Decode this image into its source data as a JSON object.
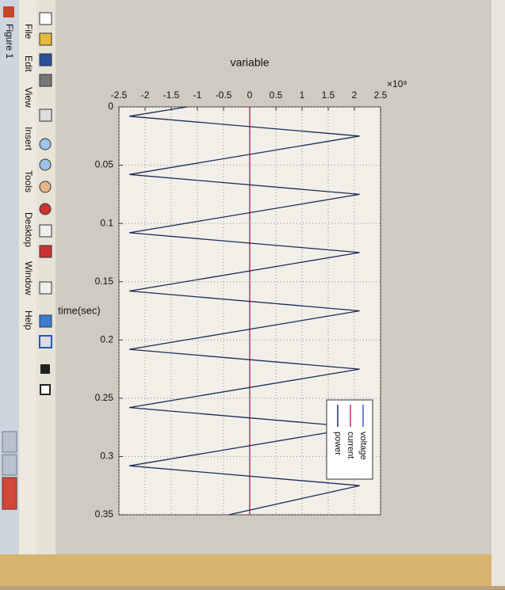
{
  "window": {
    "title": "Figure 1",
    "menu": [
      "File",
      "Edit",
      "View",
      "Insert",
      "Tools",
      "Desktop",
      "Window",
      "Help"
    ]
  },
  "chart_data": {
    "type": "line",
    "ylabel": "variable",
    "xlabel": "time(sec)",
    "multiplier": "×10⁸",
    "x": [
      0,
      0.008,
      0.025,
      0.058,
      0.075,
      0.108,
      0.125,
      0.158,
      0.175,
      0.208,
      0.225,
      0.258,
      0.275,
      0.308,
      0.325,
      0.35
    ],
    "series": [
      {
        "name": "voltage",
        "color": "#3a5fcd",
        "values": [
          0,
          0,
          0,
          0,
          0,
          0,
          0,
          0,
          0,
          0,
          0,
          0,
          0,
          0,
          0,
          0
        ]
      },
      {
        "name": "current",
        "color": "#c8325a",
        "values": [
          0,
          0,
          0,
          0,
          0,
          0,
          0,
          0,
          0,
          0,
          0,
          0,
          0,
          0,
          0,
          0
        ]
      },
      {
        "name": "power",
        "color": "#1f2a55",
        "values": [
          -1.2,
          -2.3,
          2.1,
          -2.3,
          2.1,
          -2.3,
          2.1,
          -2.3,
          2.1,
          -2.3,
          2.1,
          -2.3,
          2.1,
          -2.3,
          2.1,
          -0.4
        ]
      }
    ],
    "xlim": [
      0,
      0.35
    ],
    "xticks": [
      0,
      0.05,
      0.1,
      0.15,
      0.2,
      0.25,
      0.3,
      0.35
    ],
    "ylim": [
      -2.5,
      2.5
    ],
    "yticks": [
      -2.5,
      -2,
      -1.5,
      -1,
      -0.5,
      0,
      0.5,
      1,
      1.5,
      2,
      2.5
    ],
    "grid": true,
    "legend": "lower right"
  }
}
